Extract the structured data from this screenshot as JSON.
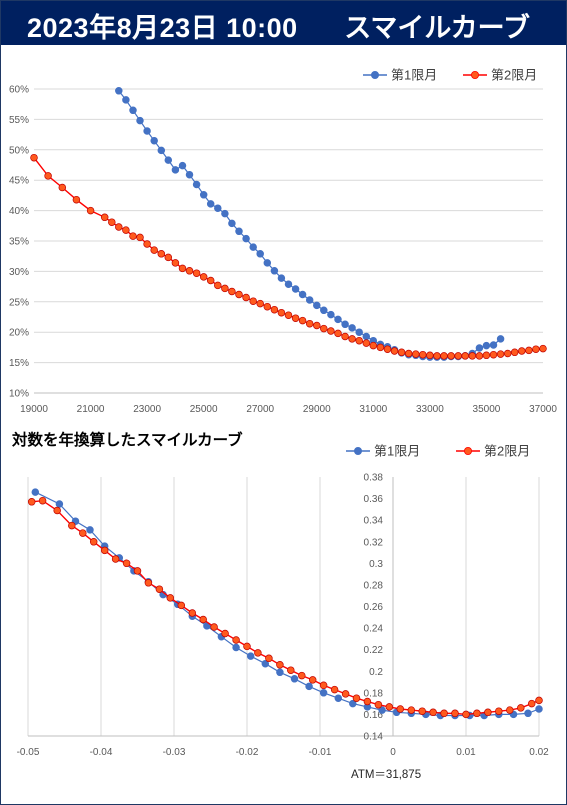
{
  "header": {
    "datetime": "2023年8月23日 10:00",
    "title": "スマイルカーブ",
    "bg_color": "#002060",
    "text_color": "#FFFFFF"
  },
  "colors": {
    "series1": "#4472C4",
    "series2": "#FF0000",
    "series2_fill": "#FF5A1E"
  },
  "chart_data": [
    {
      "type": "line",
      "title": "",
      "legend_position": "top-right",
      "xlabel": "",
      "ylabel": "",
      "xlim": [
        19000,
        37000
      ],
      "ylim": [
        0.1,
        0.6
      ],
      "x_ticks": [
        19000,
        21000,
        23000,
        25000,
        27000,
        29000,
        31000,
        33000,
        35000,
        37000
      ],
      "x_tick_labels": [
        "19000",
        "21000",
        "23000",
        "25000",
        "27000",
        "29000",
        "31000",
        "33000",
        "35000",
        "37000"
      ],
      "y_ticks": [
        0.1,
        0.15,
        0.2,
        0.25,
        0.3,
        0.35,
        0.4,
        0.45,
        0.5,
        0.55,
        0.6
      ],
      "y_tick_labels": [
        "10%",
        "15%",
        "20%",
        "25%",
        "30%",
        "35%",
        "40%",
        "45%",
        "50%",
        "55%",
        "60%"
      ],
      "grid": "horizontal",
      "series": [
        {
          "name": "第1限月",
          "x": [
            22000,
            22250,
            22500,
            22750,
            23000,
            23250,
            23500,
            23750,
            24000,
            24250,
            24500,
            24750,
            25000,
            25250,
            25500,
            25750,
            26000,
            26250,
            26500,
            26750,
            27000,
            27250,
            27500,
            27750,
            28000,
            28250,
            28500,
            28750,
            29000,
            29250,
            29500,
            29750,
            30000,
            30250,
            30500,
            30750,
            31000,
            31250,
            31500,
            31750,
            32000,
            32250,
            32500,
            32750,
            33000,
            33250,
            33500,
            33750,
            34000,
            34250,
            34500,
            34750,
            35000,
            35250,
            35500
          ],
          "y": [
            0.597,
            0.582,
            0.565,
            0.548,
            0.531,
            0.515,
            0.499,
            0.483,
            0.467,
            0.474,
            0.459,
            0.443,
            0.426,
            0.411,
            0.404,
            0.395,
            0.379,
            0.366,
            0.354,
            0.34,
            0.329,
            0.314,
            0.301,
            0.289,
            0.279,
            0.271,
            0.262,
            0.253,
            0.244,
            0.236,
            0.229,
            0.221,
            0.213,
            0.207,
            0.2,
            0.193,
            0.186,
            0.18,
            0.176,
            0.171,
            0.166,
            0.163,
            0.162,
            0.16,
            0.159,
            0.159,
            0.159,
            0.16,
            0.16,
            0.161,
            0.165,
            0.174,
            0.178,
            0.179,
            0.189
          ]
        },
        {
          "name": "第2限月",
          "x": [
            19000,
            19500,
            20000,
            20500,
            21000,
            21500,
            21750,
            22000,
            22250,
            22500,
            22750,
            23000,
            23250,
            23500,
            23750,
            24000,
            24250,
            24500,
            24750,
            25000,
            25250,
            25500,
            25750,
            26000,
            26250,
            26500,
            26750,
            27000,
            27250,
            27500,
            27750,
            28000,
            28250,
            28500,
            28750,
            29000,
            29250,
            29500,
            29750,
            30000,
            30250,
            30500,
            30750,
            31000,
            31250,
            31500,
            31750,
            32000,
            32250,
            32500,
            32750,
            33000,
            33250,
            33500,
            33750,
            34000,
            34250,
            34500,
            34750,
            35000,
            35250,
            35500,
            35750,
            36000,
            36250,
            36500,
            36750,
            37000
          ],
          "y": [
            0.487,
            0.457,
            0.438,
            0.418,
            0.4,
            0.389,
            0.381,
            0.373,
            0.368,
            0.358,
            0.356,
            0.345,
            0.335,
            0.329,
            0.323,
            0.314,
            0.305,
            0.301,
            0.297,
            0.291,
            0.285,
            0.277,
            0.272,
            0.267,
            0.262,
            0.257,
            0.251,
            0.247,
            0.242,
            0.237,
            0.232,
            0.228,
            0.223,
            0.219,
            0.214,
            0.211,
            0.206,
            0.202,
            0.198,
            0.193,
            0.189,
            0.186,
            0.182,
            0.178,
            0.175,
            0.172,
            0.169,
            0.167,
            0.165,
            0.164,
            0.163,
            0.162,
            0.161,
            0.161,
            0.161,
            0.161,
            0.161,
            0.161,
            0.161,
            0.162,
            0.163,
            0.164,
            0.165,
            0.167,
            0.169,
            0.17,
            0.172,
            0.173
          ]
        }
      ]
    },
    {
      "type": "line",
      "title": "対数を年換算したスマイルカーブ",
      "legend_position": "top-right",
      "xlabel": "",
      "ylabel": "",
      "xlim": [
        -0.05,
        0.02
      ],
      "ylim": [
        0.14,
        0.38
      ],
      "x_ticks": [
        -0.05,
        -0.04,
        -0.03,
        -0.02,
        -0.01,
        0,
        0.01,
        0.02
      ],
      "x_tick_labels": [
        "-0.05",
        "-0.04",
        "-0.03",
        "-0.02",
        "-0.01",
        "0",
        "0.01",
        "0.02"
      ],
      "y_ticks": [
        0.14,
        0.16,
        0.18,
        0.2,
        0.22,
        0.24,
        0.26,
        0.28,
        0.3,
        0.32,
        0.34,
        0.36,
        0.38
      ],
      "y_tick_labels": [
        "0.14",
        "0.16",
        "0.18",
        "0.2",
        "0.22",
        "0.24",
        "0.26",
        "0.28",
        "0.3",
        "0.32",
        "0.34",
        "0.36",
        "0.38"
      ],
      "grid": "vertical",
      "annotation": "ATM＝31,875",
      "series": [
        {
          "name": "第1限月",
          "x": [
            -0.049,
            -0.0457,
            -0.0435,
            -0.0415,
            -0.0395,
            -0.0375,
            -0.0355,
            -0.0335,
            -0.0315,
            -0.0295,
            -0.0275,
            -0.0255,
            -0.0235,
            -0.0215,
            -0.0195,
            -0.0175,
            -0.0155,
            -0.0135,
            -0.0115,
            -0.0095,
            -0.0075,
            -0.0055,
            -0.0035,
            -0.0015,
            0.0005,
            0.0025,
            0.0045,
            0.0065,
            0.0085,
            0.0105,
            0.0125,
            0.0145,
            0.0165,
            0.0185,
            0.02
          ],
          "y": [
            0.366,
            0.355,
            0.339,
            0.331,
            0.316,
            0.305,
            0.293,
            0.283,
            0.271,
            0.262,
            0.251,
            0.242,
            0.232,
            0.222,
            0.214,
            0.207,
            0.199,
            0.193,
            0.186,
            0.18,
            0.175,
            0.17,
            0.167,
            0.164,
            0.162,
            0.161,
            0.16,
            0.159,
            0.159,
            0.159,
            0.159,
            0.16,
            0.16,
            0.161,
            0.165
          ]
        },
        {
          "name": "第2限月",
          "x": [
            -0.0495,
            -0.048,
            -0.046,
            -0.044,
            -0.0425,
            -0.041,
            -0.0395,
            -0.038,
            -0.0365,
            -0.035,
            -0.0335,
            -0.032,
            -0.0305,
            -0.029,
            -0.0275,
            -0.026,
            -0.0245,
            -0.023,
            -0.0215,
            -0.02,
            -0.0185,
            -0.017,
            -0.0155,
            -0.014,
            -0.0125,
            -0.011,
            -0.0095,
            -0.008,
            -0.0065,
            -0.005,
            -0.0035,
            -0.002,
            -0.0005,
            0.001,
            0.0025,
            0.004,
            0.0055,
            0.007,
            0.0085,
            0.01,
            0.0115,
            0.013,
            0.0145,
            0.016,
            0.0175,
            0.019,
            0.02
          ],
          "y": [
            0.357,
            0.358,
            0.349,
            0.335,
            0.328,
            0.32,
            0.312,
            0.304,
            0.3,
            0.293,
            0.282,
            0.276,
            0.268,
            0.261,
            0.254,
            0.248,
            0.241,
            0.235,
            0.229,
            0.223,
            0.217,
            0.212,
            0.206,
            0.201,
            0.196,
            0.192,
            0.187,
            0.183,
            0.179,
            0.175,
            0.172,
            0.169,
            0.167,
            0.165,
            0.164,
            0.163,
            0.162,
            0.161,
            0.161,
            0.16,
            0.161,
            0.162,
            0.163,
            0.164,
            0.166,
            0.17,
            0.173
          ]
        }
      ]
    }
  ]
}
